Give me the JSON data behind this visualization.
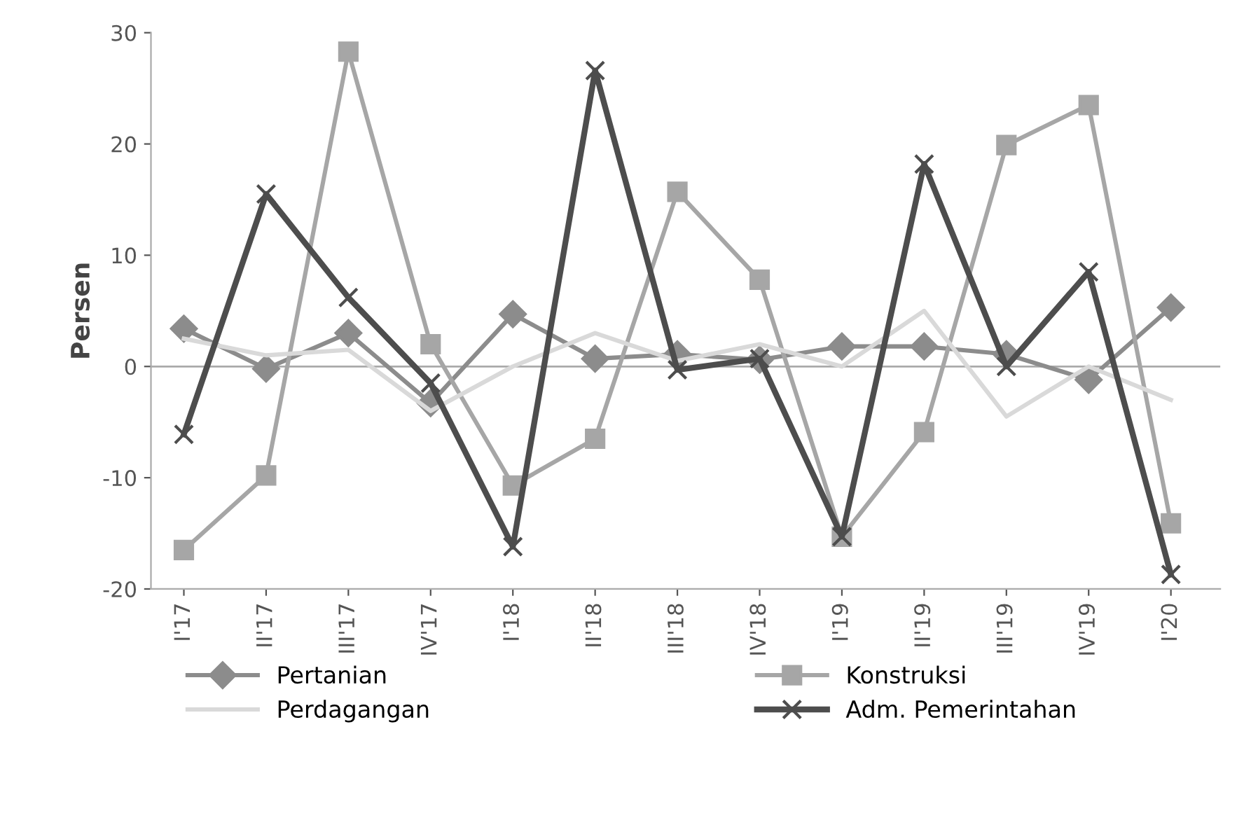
{
  "chart_data": {
    "type": "line",
    "ylabel": "Persen",
    "categories": [
      "I'17",
      "II'17",
      "III'17",
      "IV'17",
      "I'18",
      "II'18",
      "III'18",
      "IV'18",
      "I'19",
      "II'19",
      "III'19",
      "IV'19",
      "I'20"
    ],
    "series": [
      {
        "name": "Pertanian",
        "color": "#8c8c8c",
        "marker": "diamond",
        "values": [
          3.4,
          -0.2,
          3.0,
          -3.3,
          4.7,
          0.7,
          1.1,
          0.6,
          1.8,
          1.8,
          1.1,
          -1.2,
          5.3
        ]
      },
      {
        "name": "Konstruksi",
        "color": "#a6a6a6",
        "marker": "square",
        "values": [
          -16.5,
          -9.8,
          28.3,
          2.0,
          -10.7,
          -6.5,
          15.7,
          7.8,
          -15.3,
          -5.9,
          19.9,
          23.5,
          -14.1
        ]
      },
      {
        "name": "Perdagangan",
        "color": "#d9d9d9",
        "marker": "none",
        "values": [
          2.5,
          1.0,
          1.5,
          -4.0,
          0.0,
          3.0,
          0.5,
          2.0,
          0.0,
          5.0,
          -4.5,
          0.0,
          -3.0
        ]
      },
      {
        "name": "Adm. Pemerintahan",
        "color": "#4d4d4d",
        "marker": "cross",
        "values": [
          -6.1,
          15.5,
          6.2,
          -1.5,
          -16.2,
          26.6,
          -0.3,
          0.7,
          -15.3,
          18.2,
          0.0,
          8.5,
          -18.7
        ]
      }
    ],
    "ylim": [
      -20,
      30
    ],
    "yticks": [
      -20,
      -10,
      0,
      10,
      20,
      30
    ],
    "grid": false,
    "ref_lines": [
      {
        "axis": "y",
        "value": 0,
        "color": "#aaaaaa"
      }
    ],
    "legend": "bottom",
    "line_style": "solid"
  }
}
